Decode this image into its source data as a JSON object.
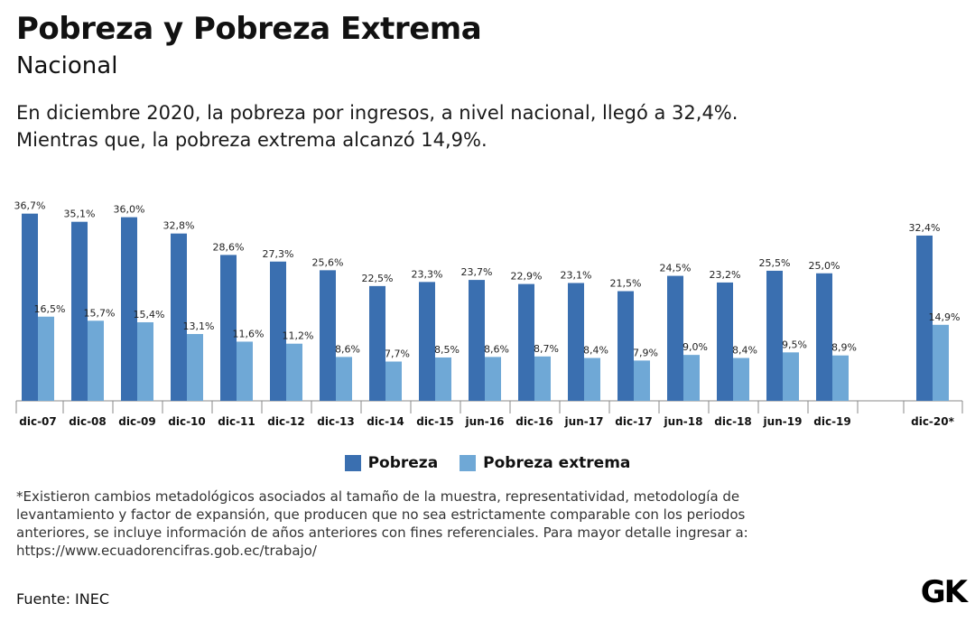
{
  "header": {
    "title": "Pobreza y Pobreza Extrema",
    "subtitle": "Nacional",
    "summary_line1": "En diciembre 2020, la pobreza por ingresos, a nivel nacional, llegó a 32,4%.",
    "summary_line2": "Mientras que, la pobreza extrema alcanzó 14,9%."
  },
  "legend": {
    "pobreza": "Pobreza",
    "extrema": "Pobreza extrema"
  },
  "colors": {
    "pobreza": "#3a6fb0",
    "extrema": "#6fa8d6",
    "axis": "#888888"
  },
  "footnote": {
    "line1": "*Existieron cambios metadológicos asociados al tamaño de la muestra, representatividad, metodología de",
    "line2": "levantamiento y factor de expansión, que producen que no sea estrictamente comparable con los periodos",
    "line3": "anteriores, se incluye información de años anteriores con fines referenciales. Para mayor detalle ingresar a:",
    "line4": "https://www.ecuadorencifras.gob.ec/trabajo/"
  },
  "source": "Fuente: INEC",
  "logo": "GK",
  "chart_data": {
    "type": "bar",
    "title": "Pobreza y Pobreza Extrema",
    "xlabel": "",
    "ylabel": "",
    "ylim": [
      0,
      40
    ],
    "grid": false,
    "legend_position": "bottom-center",
    "categories": [
      "dic-07",
      "dic-08",
      "dic-09",
      "dic-10",
      "dic-11",
      "dic-12",
      "dic-13",
      "dic-14",
      "dic-15",
      "jun-16",
      "dic-16",
      "jun-17",
      "dic-17",
      "jun-18",
      "dic-18",
      "jun-19",
      "dic-19",
      "dic-20*"
    ],
    "series": [
      {
        "name": "Pobreza",
        "values": [
          36.7,
          35.1,
          36.0,
          32.8,
          28.6,
          27.3,
          25.6,
          22.5,
          23.3,
          23.7,
          22.9,
          23.1,
          21.5,
          24.5,
          23.2,
          25.5,
          25.0,
          32.4
        ],
        "labels": [
          "36,7%",
          "35,1%",
          "36,0%",
          "32,8%",
          "28,6%",
          "27,3%",
          "25,6%",
          "22,5%",
          "23,3%",
          "23,7%",
          "22,9%",
          "23,1%",
          "21,5%",
          "24,5%",
          "23,2%",
          "25,5%",
          "25,0%",
          "32,4%"
        ]
      },
      {
        "name": "Pobreza extrema",
        "values": [
          16.5,
          15.7,
          15.4,
          13.1,
          11.6,
          11.2,
          8.6,
          7.7,
          8.5,
          8.6,
          8.7,
          8.4,
          7.9,
          9.0,
          8.4,
          9.5,
          8.9,
          14.9
        ],
        "labels": [
          "16,5%",
          "15,7%",
          "15,4%",
          "13,1%",
          "11,6%",
          "11,2%",
          "8,6%",
          "7,7%",
          "8,5%",
          "8,6%",
          "8,7%",
          "8,4%",
          "7,9%",
          "9,0%",
          "8,4%",
          "9,5%",
          "8,9%",
          "14,9%"
        ]
      }
    ]
  }
}
